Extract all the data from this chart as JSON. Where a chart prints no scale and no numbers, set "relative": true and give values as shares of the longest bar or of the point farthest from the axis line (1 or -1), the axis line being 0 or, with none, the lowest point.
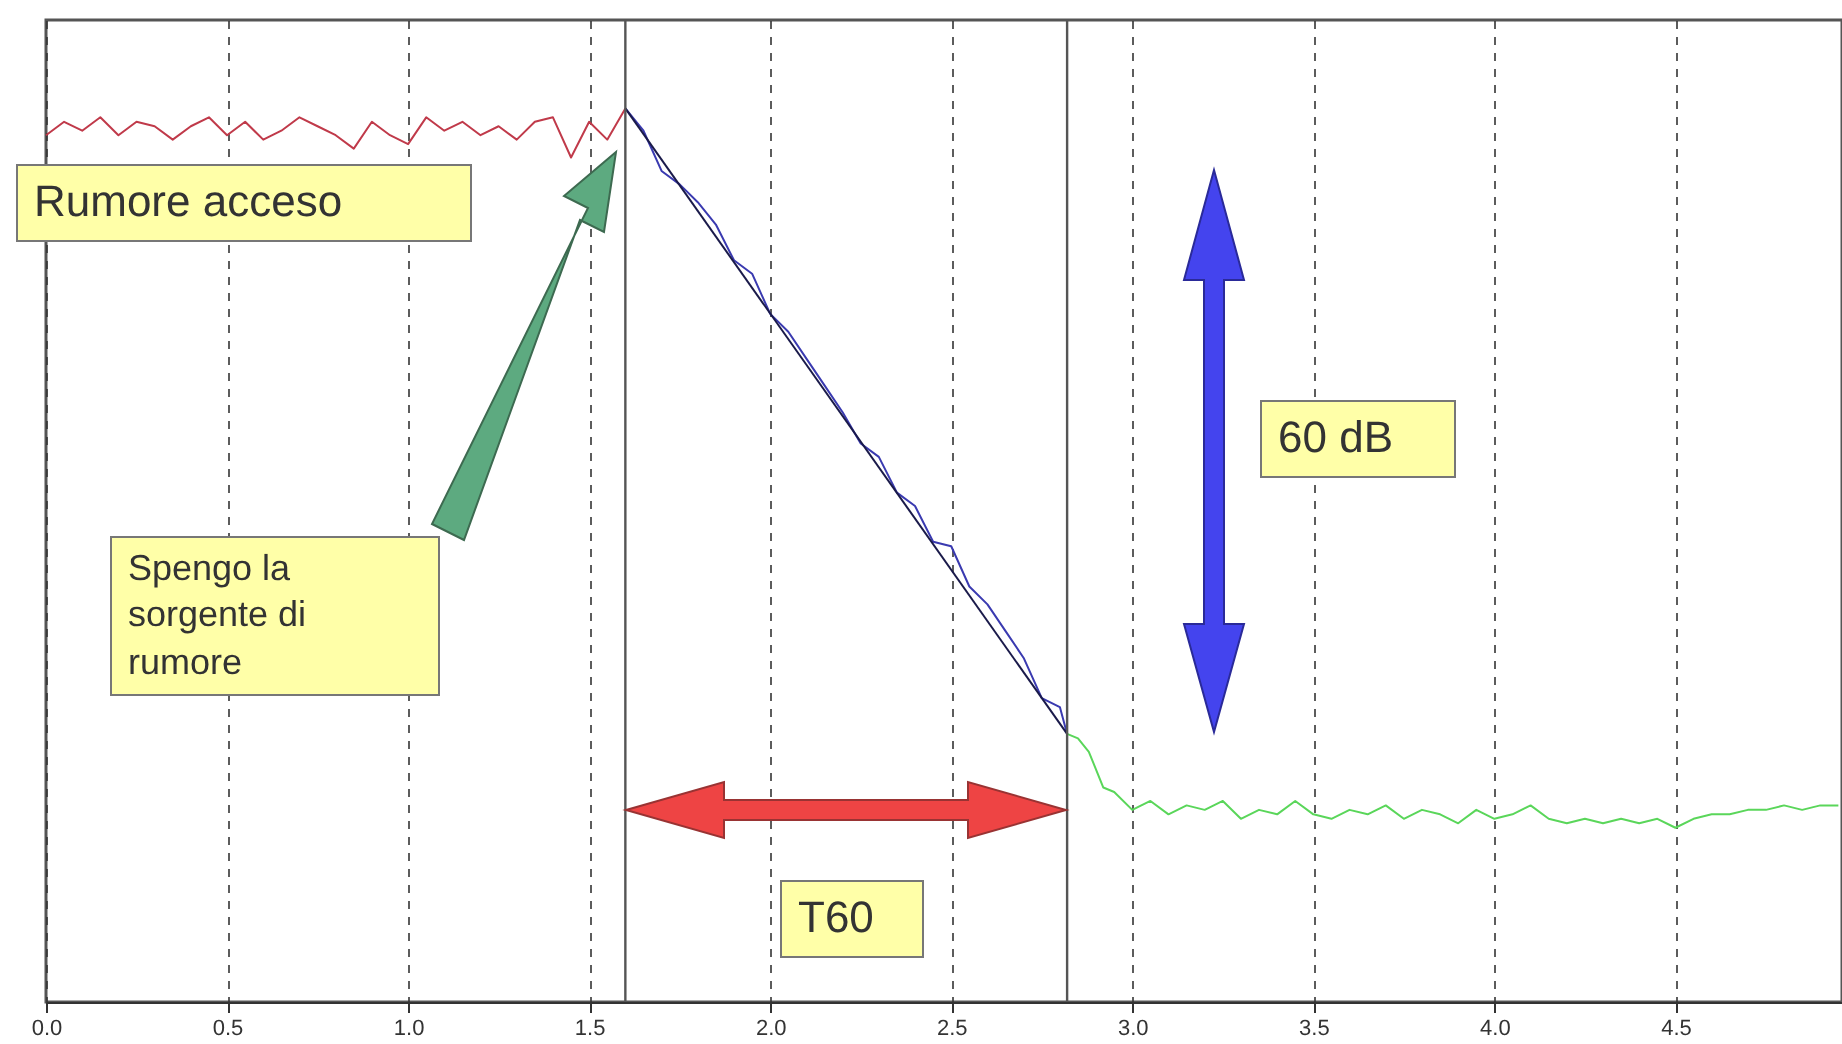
{
  "chart_data": {
    "type": "line",
    "relative": true,
    "grid": "x",
    "xlim": [
      0,
      4.96
    ],
    "xticks": [
      {
        "value": 0,
        "label": "0.0"
      },
      0.5,
      {
        "value": 1,
        "label": "1.0"
      },
      1.5,
      {
        "value": 2,
        "label": "2.0"
      },
      2.5,
      {
        "value": 3,
        "label": "3.0"
      },
      3.5,
      {
        "value": 4,
        "label": "4.0"
      },
      4.5
    ],
    "series": [
      {
        "color": "#c03a4a",
        "x": [
          0,
          0.05,
          0.1,
          0.15,
          0.2,
          0.25,
          0.3,
          0.35,
          0.4,
          0.45,
          0.5,
          0.55,
          0.6,
          0.65,
          0.7,
          0.75,
          0.8,
          0.85,
          0.9,
          0.95,
          1.0,
          1.05,
          1.1,
          1.15,
          1.2,
          1.25,
          1.3,
          1.35,
          1.4,
          1.45,
          1.5,
          1.55,
          1.6
        ],
        "values": [
          0.97,
          0.985,
          0.975,
          0.99,
          0.97,
          0.985,
          0.98,
          0.965,
          0.98,
          0.99,
          0.97,
          0.985,
          0.965,
          0.975,
          0.99,
          0.98,
          0.97,
          0.955,
          0.985,
          0.97,
          0.96,
          0.99,
          0.975,
          0.985,
          0.97,
          0.98,
          0.965,
          0.985,
          0.99,
          0.945,
          0.985,
          0.965,
          1.0
        ]
      },
      {
        "color": "#3a3ab0",
        "x": [
          1.6,
          1.65,
          1.7,
          1.75,
          1.8,
          1.85,
          1.9,
          1.95,
          2.0,
          2.05,
          2.1,
          2.15,
          2.2,
          2.25,
          2.3,
          2.35,
          2.4,
          2.45,
          2.5,
          2.55,
          2.6,
          2.65,
          2.7,
          2.75,
          2.8,
          2.82
        ],
        "values": [
          1.0,
          0.975,
          0.93,
          0.915,
          0.895,
          0.87,
          0.83,
          0.815,
          0.77,
          0.75,
          0.72,
          0.69,
          0.66,
          0.625,
          0.61,
          0.57,
          0.555,
          0.515,
          0.51,
          0.465,
          0.445,
          0.415,
          0.385,
          0.34,
          0.33,
          0.3
        ]
      },
      {
        "color": "#5ad65a",
        "x": [
          2.82,
          2.85,
          2.88,
          2.92,
          2.95,
          3.0,
          3.05,
          3.1,
          3.15,
          3.2,
          3.25,
          3.3,
          3.35,
          3.4,
          3.45,
          3.5,
          3.55,
          3.6,
          3.65,
          3.7,
          3.75,
          3.8,
          3.85,
          3.9,
          3.95,
          4.0,
          4.05,
          4.1,
          4.15,
          4.2,
          4.25,
          4.3,
          4.35,
          4.4,
          4.45,
          4.5,
          4.55,
          4.6,
          4.65,
          4.7,
          4.75,
          4.8,
          4.85,
          4.9,
          4.95
        ],
        "values": [
          0.3,
          0.295,
          0.28,
          0.24,
          0.235,
          0.215,
          0.225,
          0.21,
          0.22,
          0.215,
          0.225,
          0.205,
          0.215,
          0.21,
          0.225,
          0.21,
          0.205,
          0.215,
          0.21,
          0.22,
          0.205,
          0.215,
          0.21,
          0.2,
          0.215,
          0.205,
          0.21,
          0.22,
          0.205,
          0.2,
          0.205,
          0.2,
          0.205,
          0.2,
          0.205,
          0.195,
          0.205,
          0.21,
          0.21,
          0.215,
          0.215,
          0.22,
          0.215,
          0.22,
          0.22
        ]
      },
      {
        "type": "line",
        "color": "#1a1a4a",
        "x": [
          1.6,
          2.82
        ],
        "values": [
          1.0,
          0.3
        ]
      }
    ],
    "ref_lines": [
      {
        "axis": "x",
        "value": 1.6,
        "color": "#555555"
      },
      {
        "axis": "x",
        "value": 2.82,
        "color": "#555555"
      }
    ],
    "annotations": [
      "Rumore acceso",
      "Spengo la sorgente di rumore",
      "60 dB",
      "T60"
    ]
  }
}
